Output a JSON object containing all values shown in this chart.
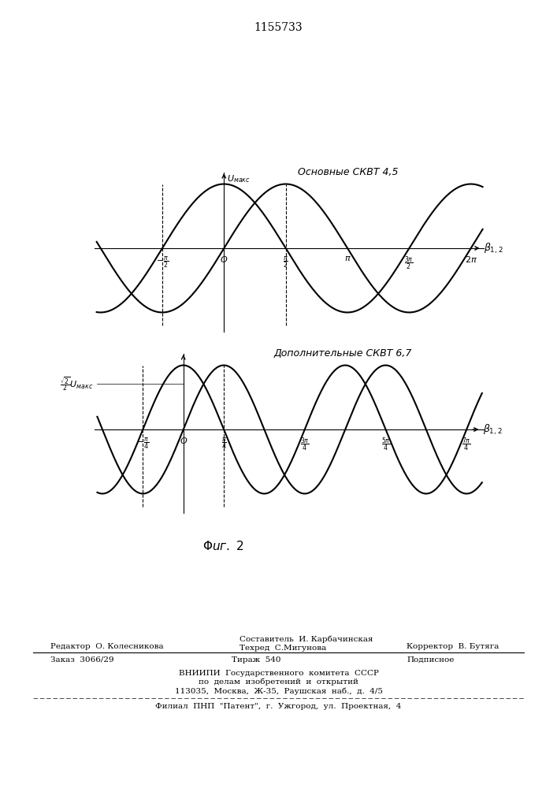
{
  "title": "1155733",
  "top_label": "Основные СКВТ 4,5",
  "bottom_label": "Дополнительные СКВТ 6,7",
  "top_ylabel": "Uмакс",
  "bottom_ylabel": "√2/2 Uмакс",
  "bg_color": "#ffffff",
  "curve_color": "#000000",
  "footer_redaktor": "Редактор  О. Колесникова",
  "footer_sostavitel": "Составитель  И. Карбачинская",
  "footer_tekhred": "Техред  С.Мигунова",
  "footer_korrektor": "Корректор  В. Бутяга",
  "footer_zakaz": "Заказ  3066/29",
  "footer_tirazh": "Тираж  540",
  "footer_podpisnoe": "Подписное",
  "footer_vnipi": "ВНИИПИ  Государственного  комитета  СССР",
  "footer_po_delam": "по  делам  изобретений  и  открытий",
  "footer_address": "113035,  Москва,  Ж‑35,  Раушская  наб.,  д.  4/5",
  "footer_filial": "Филиал  ПНП  \"Патент\",  г.  Ужгород,  ул.  Проектная,  4"
}
